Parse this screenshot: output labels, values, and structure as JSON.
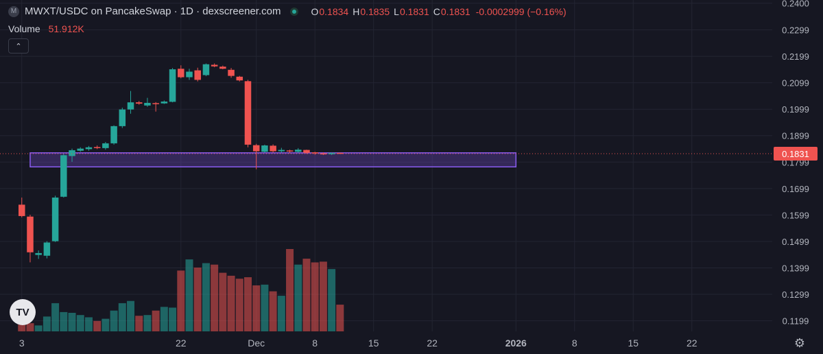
{
  "header": {
    "symbol_badge": "M",
    "title": "MWXT/USDC on PancakeSwap · 1D · dexscreener.com",
    "ohlc": [
      {
        "key": "O",
        "value": "0.1834"
      },
      {
        "key": "H",
        "value": "0.1835"
      },
      {
        "key": "L",
        "value": "0.1831"
      },
      {
        "key": "C",
        "value": "0.1831"
      }
    ],
    "change": "-0.0002999 (−0.16%)"
  },
  "volume": {
    "label": "Volume",
    "value": "51.912K"
  },
  "collapse_icon": "chevron-up-icon",
  "logo_text": "TV",
  "settings_icon": "gear-icon",
  "colors": {
    "background": "#161722",
    "up": "#26a69a",
    "down": "#ef5350",
    "zone": "#7b4fd6",
    "grid": "#232532"
  },
  "chart_data": {
    "type": "candlestick",
    "y_axis_ticks": [
      "0.1199",
      "0.1299",
      "0.1399",
      "0.1499",
      "0.1599",
      "0.1699",
      "0.1799",
      "0.1899",
      "0.1999",
      "0.2099",
      "0.2199",
      "0.2299",
      "0.2400"
    ],
    "ylim": [
      0.1159,
      0.2412
    ],
    "x_axis_ticks": [
      {
        "label": "3",
        "day": 3
      },
      {
        "label": "22",
        "day": 22
      },
      {
        "label": "Dec",
        "day": 31
      },
      {
        "label": "8",
        "day": 38
      },
      {
        "label": "15",
        "day": 45
      },
      {
        "label": "22",
        "day": 52
      },
      {
        "label": "2026",
        "day": 62
      },
      {
        "label": "8",
        "day": 69
      },
      {
        "label": "15",
        "day": 76
      },
      {
        "label": "22",
        "day": 83
      }
    ],
    "xlim": [
      0.4,
      92.6
    ],
    "last_price": "0.1831",
    "last_price_value": 0.1831,
    "zone": {
      "day_from": 4.0,
      "day_to": 62.0,
      "price_low": 0.1781,
      "price_high": 0.1834
    },
    "candles": [
      {
        "day": 3,
        "open": 0.1638,
        "high": 0.1665,
        "low": 0.159,
        "close": 0.1595,
        "volume": 9
      },
      {
        "day": 4,
        "open": 0.1593,
        "high": 0.16,
        "low": 0.142,
        "close": 0.1458,
        "volume": 11
      },
      {
        "day": 5,
        "open": 0.1448,
        "high": 0.1465,
        "low": 0.1433,
        "close": 0.1455,
        "volume": 8
      },
      {
        "day": 6,
        "open": 0.1445,
        "high": 0.15,
        "low": 0.1435,
        "close": 0.1495,
        "volume": 20
      },
      {
        "day": 7,
        "open": 0.15,
        "high": 0.1672,
        "low": 0.1497,
        "close": 0.1665,
        "volume": 38
      },
      {
        "day": 8,
        "open": 0.1668,
        "high": 0.1831,
        "low": 0.1665,
        "close": 0.1825,
        "volume": 26
      },
      {
        "day": 9,
        "open": 0.1822,
        "high": 0.185,
        "low": 0.18,
        "close": 0.1844,
        "volume": 25
      },
      {
        "day": 10,
        "open": 0.1842,
        "high": 0.1855,
        "low": 0.1838,
        "close": 0.185,
        "volume": 22
      },
      {
        "day": 11,
        "open": 0.1848,
        "high": 0.186,
        "low": 0.1842,
        "close": 0.1855,
        "volume": 19
      },
      {
        "day": 12,
        "open": 0.1856,
        "high": 0.1862,
        "low": 0.1848,
        "close": 0.1852,
        "volume": 14
      },
      {
        "day": 13,
        "open": 0.1852,
        "high": 0.1875,
        "low": 0.1846,
        "close": 0.187,
        "volume": 17
      },
      {
        "day": 14,
        "open": 0.187,
        "high": 0.1938,
        "low": 0.1865,
        "close": 0.1935,
        "volume": 28
      },
      {
        "day": 15,
        "open": 0.1935,
        "high": 0.2005,
        "low": 0.1928,
        "close": 0.1998,
        "volume": 38
      },
      {
        "day": 16,
        "open": 0.1998,
        "high": 0.2068,
        "low": 0.1982,
        "close": 0.2025,
        "volume": 41
      },
      {
        "day": 17,
        "open": 0.2025,
        "high": 0.203,
        "low": 0.2016,
        "close": 0.202,
        "volume": 21
      },
      {
        "day": 18,
        "open": 0.2013,
        "high": 0.2042,
        "low": 0.2008,
        "close": 0.2023,
        "volume": 22
      },
      {
        "day": 19,
        "open": 0.2022,
        "high": 0.2026,
        "low": 0.199,
        "close": 0.202,
        "volume": 28
      },
      {
        "day": 20,
        "open": 0.2021,
        "high": 0.2032,
        "low": 0.2019,
        "close": 0.2028,
        "volume": 33
      },
      {
        "day": 21,
        "open": 0.2027,
        "high": 0.2155,
        "low": 0.2025,
        "close": 0.215,
        "volume": 32
      },
      {
        "day": 22,
        "open": 0.2152,
        "high": 0.2165,
        "low": 0.2116,
        "close": 0.212,
        "volume": 82
      },
      {
        "day": 23,
        "open": 0.212,
        "high": 0.2152,
        "low": 0.211,
        "close": 0.2141,
        "volume": 97
      },
      {
        "day": 24,
        "open": 0.2146,
        "high": 0.2156,
        "low": 0.2104,
        "close": 0.211,
        "volume": 86
      },
      {
        "day": 25,
        "open": 0.2128,
        "high": 0.2172,
        "low": 0.2124,
        "close": 0.2169,
        "volume": 92
      },
      {
        "day": 26,
        "open": 0.2167,
        "high": 0.2172,
        "low": 0.2158,
        "close": 0.2161,
        "volume": 90
      },
      {
        "day": 27,
        "open": 0.216,
        "high": 0.2164,
        "low": 0.215,
        "close": 0.2152,
        "volume": 79
      },
      {
        "day": 28,
        "open": 0.2148,
        "high": 0.2155,
        "low": 0.2118,
        "close": 0.2125,
        "volume": 75
      },
      {
        "day": 29,
        "open": 0.2122,
        "high": 0.2125,
        "low": 0.2104,
        "close": 0.2108,
        "volume": 71
      },
      {
        "day": 30,
        "open": 0.2105,
        "high": 0.211,
        "low": 0.1855,
        "close": 0.1865,
        "volume": 73
      },
      {
        "day": 31,
        "open": 0.1863,
        "high": 0.1868,
        "low": 0.1772,
        "close": 0.184,
        "volume": 62
      },
      {
        "day": 32,
        "open": 0.1838,
        "high": 0.1865,
        "low": 0.1835,
        "close": 0.1862,
        "volume": 63
      },
      {
        "day": 33,
        "open": 0.1861,
        "high": 0.1866,
        "low": 0.1835,
        "close": 0.184,
        "volume": 54
      },
      {
        "day": 34,
        "open": 0.184,
        "high": 0.1853,
        "low": 0.1835,
        "close": 0.1845,
        "volume": 48
      },
      {
        "day": 35,
        "open": 0.1843,
        "high": 0.1846,
        "low": 0.1832,
        "close": 0.184,
        "volume": 111
      },
      {
        "day": 36,
        "open": 0.1838,
        "high": 0.1852,
        "low": 0.1834,
        "close": 0.1846,
        "volume": 90
      },
      {
        "day": 37,
        "open": 0.1845,
        "high": 0.1846,
        "low": 0.183,
        "close": 0.1834,
        "volume": 98
      },
      {
        "day": 38,
        "open": 0.1836,
        "high": 0.1838,
        "low": 0.1827,
        "close": 0.1832,
        "volume": 93
      },
      {
        "day": 39,
        "open": 0.1832,
        "high": 0.1836,
        "low": 0.1826,
        "close": 0.183,
        "volume": 94
      },
      {
        "day": 40,
        "open": 0.1829,
        "high": 0.1835,
        "low": 0.1826,
        "close": 0.1834,
        "volume": 84
      },
      {
        "day": 41,
        "open": 0.1834,
        "high": 0.1835,
        "low": 0.1831,
        "close": 0.1831,
        "volume": 36
      }
    ]
  }
}
